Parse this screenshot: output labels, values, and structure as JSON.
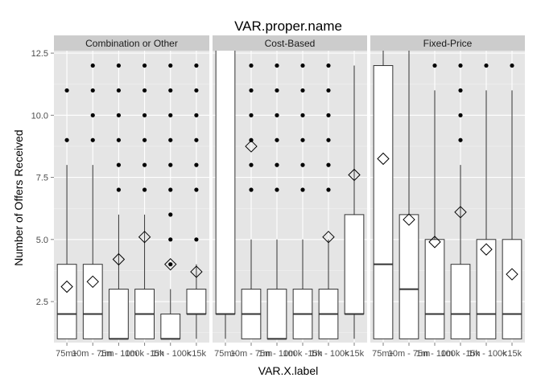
{
  "chart_data": {
    "type": "box",
    "title": "VAR.proper.name",
    "xlabel": "VAR.X.label",
    "ylabel": "Number of Offers Received",
    "ylim": [
      0.85,
      12.6
    ],
    "yticks": [
      2.5,
      5.0,
      7.5,
      10.0,
      12.5
    ],
    "ytick_labels": [
      "2.5",
      "5.0",
      "7.5",
      "10.0",
      "12.5"
    ],
    "categories": [
      "75m+",
      "10m - 75m",
      "1m - 10m",
      "100k - 1m",
      "15k - 100k",
      "<15k"
    ],
    "grid": true,
    "colors": {
      "panel_bg": "#e5e5e5",
      "strip_bg": "#cccccc",
      "grid_major": "#ffffff",
      "grid_minor": "#f2f2f2",
      "box_fill": "#ffffff",
      "outline": "#333333"
    },
    "panels": [
      {
        "name": "Combination or Other",
        "boxes": [
          {
            "category": "75m+",
            "q1": 1,
            "median": 2,
            "q3": 4,
            "whisker_low": 1,
            "whisker_high": 8,
            "mean": 3.1,
            "outliers": [
              9,
              11
            ]
          },
          {
            "category": "10m - 75m",
            "q1": 1,
            "median": 2,
            "q3": 4,
            "whisker_low": 1,
            "whisker_high": 8,
            "mean": 3.3,
            "outliers": [
              9,
              10,
              11,
              12
            ]
          },
          {
            "category": "1m - 10m",
            "q1": 1,
            "median": 1,
            "q3": 3,
            "whisker_low": 1,
            "whisker_high": 6,
            "mean": 4.2,
            "outliers": [
              7,
              8,
              9,
              10,
              11,
              12
            ]
          },
          {
            "category": "100k - 1m",
            "q1": 1,
            "median": 2,
            "q3": 3,
            "whisker_low": 1,
            "whisker_high": 6,
            "mean": 5.1,
            "outliers": [
              7,
              8,
              9,
              10,
              11,
              12
            ]
          },
          {
            "category": "15k - 100k",
            "q1": 1,
            "median": 1,
            "q3": 2,
            "whisker_low": 1,
            "whisker_high": 3,
            "mean": 4.0,
            "outliers": [
              4,
              5,
              6,
              7,
              8,
              9,
              10,
              11,
              12
            ]
          },
          {
            "category": "<15k",
            "q1": 2,
            "median": 2,
            "q3": 3,
            "whisker_low": 1,
            "whisker_high": 4,
            "mean": 3.7,
            "outliers": [
              5,
              7,
              8,
              9,
              10,
              11,
              12
            ]
          }
        ]
      },
      {
        "name": "Cost-Based",
        "boxes": [
          {
            "category": "75m+",
            "q1": 2,
            "median": 2,
            "q3": 13,
            "whisker_low": 1,
            "whisker_high": 13,
            "mean": null,
            "outliers": []
          },
          {
            "category": "10m - 75m",
            "q1": 1,
            "median": 2,
            "q3": 3,
            "whisker_low": 1,
            "whisker_high": 5,
            "mean": 8.75,
            "outliers": [
              7,
              8,
              9,
              10,
              11,
              12
            ]
          },
          {
            "category": "1m - 10m",
            "q1": 1,
            "median": 1,
            "q3": 3,
            "whisker_low": 1,
            "whisker_high": 5,
            "mean": null,
            "outliers": [
              7,
              8,
              9,
              10,
              11,
              12
            ]
          },
          {
            "category": "100k - 1m",
            "q1": 1,
            "median": 2,
            "q3": 3,
            "whisker_low": 1,
            "whisker_high": 5,
            "mean": null,
            "outliers": [
              7,
              8,
              9,
              10,
              11,
              12
            ]
          },
          {
            "category": "15k - 100k",
            "q1": 1,
            "median": 2,
            "q3": 3,
            "whisker_low": 1,
            "whisker_high": 5,
            "mean": 5.1,
            "outliers": [
              7,
              8,
              9,
              10,
              11,
              12
            ]
          },
          {
            "category": "<15k",
            "q1": 2,
            "median": 2,
            "q3": 6,
            "whisker_low": 1,
            "whisker_high": 12,
            "mean": 7.6,
            "outliers": []
          }
        ]
      },
      {
        "name": "Fixed-Price",
        "boxes": [
          {
            "category": "75m+",
            "q1": 1,
            "median": 4,
            "q3": 12,
            "whisker_low": 1,
            "whisker_high": 13,
            "mean": 8.25,
            "outliers": []
          },
          {
            "category": "10m - 75m",
            "q1": 1,
            "median": 3,
            "q3": 6,
            "whisker_low": 1,
            "whisker_high": 13,
            "mean": 5.8,
            "outliers": []
          },
          {
            "category": "1m - 10m",
            "q1": 1,
            "median": 2,
            "q3": 5,
            "whisker_low": 1,
            "whisker_high": 11,
            "mean": 4.9,
            "outliers": [
              12
            ]
          },
          {
            "category": "100k - 1m",
            "q1": 1,
            "median": 2,
            "q3": 4,
            "whisker_low": 1,
            "whisker_high": 8,
            "mean": 6.1,
            "outliers": [
              9,
              10,
              11,
              12
            ]
          },
          {
            "category": "15k - 100k",
            "q1": 1,
            "median": 2,
            "q3": 5,
            "whisker_low": 1,
            "whisker_high": 11,
            "mean": 4.6,
            "outliers": [
              12
            ]
          },
          {
            "category": "<15k",
            "q1": 1,
            "median": 2,
            "q3": 5,
            "whisker_low": 1,
            "whisker_high": 11,
            "mean": 3.6,
            "outliers": [
              12
            ]
          }
        ]
      }
    ]
  }
}
